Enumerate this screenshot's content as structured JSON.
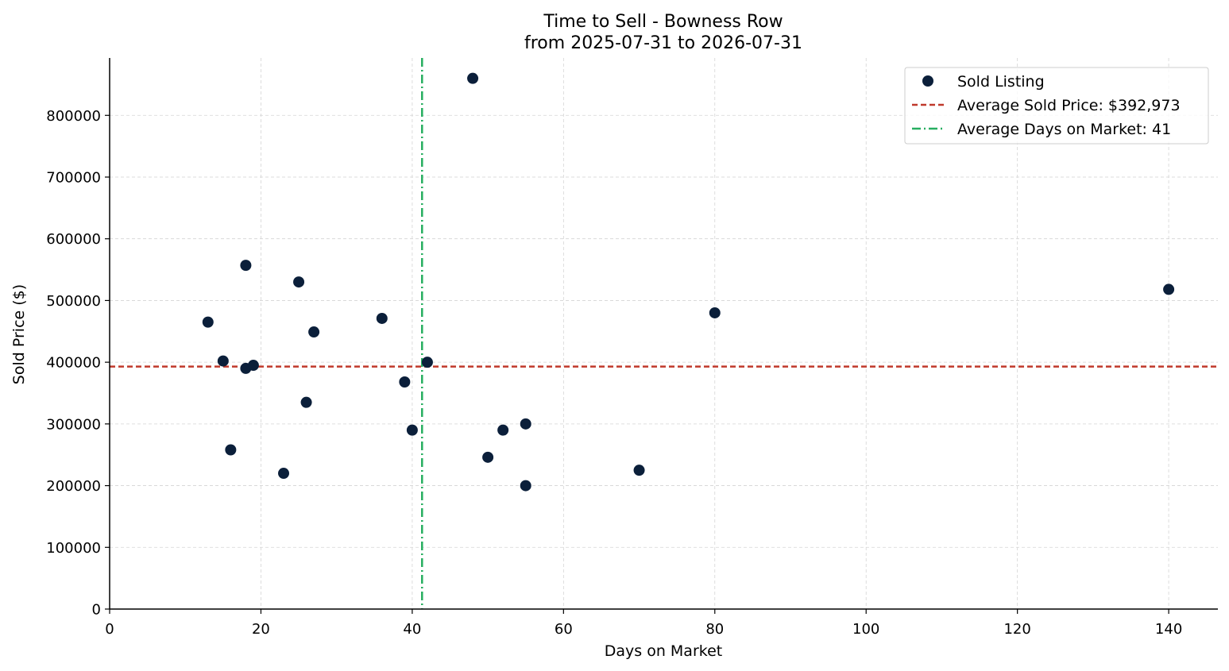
{
  "chart_data": {
    "type": "scatter",
    "title": "Time to Sell - Bowness Row",
    "subtitle": "from 2025-07-31 to 2026-07-31",
    "xlabel": "Days on Market",
    "ylabel": "Sold Price ($)",
    "xlim": [
      0,
      146.5
    ],
    "ylim": [
      0,
      893000
    ],
    "xticks": [
      0,
      20,
      40,
      60,
      80,
      100,
      120,
      140
    ],
    "yticks": [
      0,
      100000,
      200000,
      300000,
      400000,
      500000,
      600000,
      700000,
      800000
    ],
    "grid": true,
    "legend_position": "top-right",
    "series": [
      {
        "name": "Sold Listing",
        "color": "#0b1f3a",
        "points": [
          {
            "x": 13,
            "y": 465000
          },
          {
            "x": 15,
            "y": 402000
          },
          {
            "x": 16,
            "y": 258000
          },
          {
            "x": 18,
            "y": 557000
          },
          {
            "x": 18,
            "y": 390000
          },
          {
            "x": 19,
            "y": 395000
          },
          {
            "x": 23,
            "y": 220000
          },
          {
            "x": 25,
            "y": 530000
          },
          {
            "x": 26,
            "y": 335000
          },
          {
            "x": 27,
            "y": 449000
          },
          {
            "x": 36,
            "y": 471000
          },
          {
            "x": 39,
            "y": 368000
          },
          {
            "x": 40,
            "y": 290000
          },
          {
            "x": 42,
            "y": 400000
          },
          {
            "x": 48,
            "y": 860000
          },
          {
            "x": 50,
            "y": 246000
          },
          {
            "x": 52,
            "y": 290000
          },
          {
            "x": 55,
            "y": 300000
          },
          {
            "x": 55,
            "y": 200000
          },
          {
            "x": 70,
            "y": 225000
          },
          {
            "x": 80,
            "y": 480000
          },
          {
            "x": 140,
            "y": 518000
          }
        ]
      }
    ],
    "reference_lines": [
      {
        "name": "Average Sold Price: $392,973",
        "orientation": "horizontal",
        "value": 392973,
        "color": "#c0392b",
        "style": "dashed"
      },
      {
        "name": "Average Days on Market: 41",
        "orientation": "vertical",
        "value": 41.3,
        "color": "#27ae60",
        "style": "dashdot"
      }
    ]
  }
}
